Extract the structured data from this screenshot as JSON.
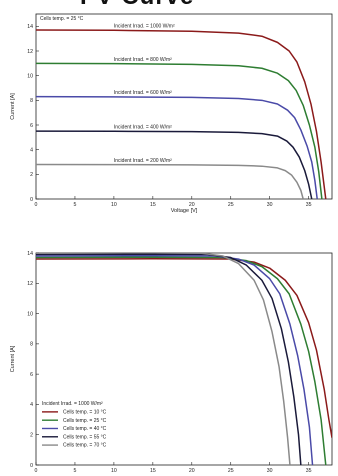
{
  "page_title": "I-V Curve",
  "chart_data": [
    {
      "type": "line",
      "title": "",
      "xlabel": "Voltage [V]",
      "ylabel": "Current [A]",
      "xlim": [
        0,
        38
      ],
      "ylim": [
        0,
        15
      ],
      "x_ticks": [
        0,
        5,
        10,
        15,
        20,
        25,
        30,
        35
      ],
      "y_ticks": [
        0,
        2,
        4,
        6,
        8,
        10,
        12,
        14
      ],
      "grid": false,
      "note": "Cells temp. = 25 °C",
      "series": [
        {
          "name": "Incident Irrad. = 1000 W/m²",
          "color": "#8b1a1a",
          "isc": 13.7,
          "voc": 37.2,
          "x": [
            0,
            10,
            20,
            26,
            29,
            31,
            32.5,
            33.5,
            34.5,
            35.3,
            36,
            36.6,
            37.2
          ],
          "y": [
            13.7,
            13.68,
            13.6,
            13.45,
            13.2,
            12.7,
            12.0,
            11.1,
            9.5,
            7.7,
            5.5,
            3.0,
            0
          ]
        },
        {
          "name": "Incident Irrad. = 800 W/m²",
          "color": "#2e7d32",
          "isc": 11.0,
          "voc": 36.7,
          "x": [
            0,
            10,
            20,
            26,
            29,
            31,
            32.4,
            33.4,
            34.3,
            35.1,
            35.8,
            36.3,
            36.7
          ],
          "y": [
            11.0,
            10.98,
            10.92,
            10.8,
            10.6,
            10.2,
            9.6,
            8.8,
            7.6,
            6.0,
            4.2,
            2.2,
            0
          ]
        },
        {
          "name": "Incident Irrad. = 600 W/m²",
          "color": "#4a4aa8",
          "isc": 8.3,
          "voc": 36.1,
          "x": [
            0,
            10,
            20,
            26,
            29,
            31,
            32.3,
            33.2,
            34.0,
            34.8,
            35.4,
            35.8,
            36.1
          ],
          "y": [
            8.3,
            8.28,
            8.24,
            8.15,
            8.0,
            7.7,
            7.2,
            6.6,
            5.6,
            4.3,
            3.0,
            1.5,
            0
          ]
        },
        {
          "name": "Incident Irrad. = 400 W/m²",
          "color": "#1a1a3a",
          "isc": 5.5,
          "voc": 35.4,
          "x": [
            0,
            10,
            20,
            26,
            29,
            31,
            32.2,
            33.0,
            33.8,
            34.5,
            35.0,
            35.4
          ],
          "y": [
            5.5,
            5.49,
            5.46,
            5.4,
            5.3,
            5.1,
            4.7,
            4.2,
            3.4,
            2.3,
            1.2,
            0
          ]
        },
        {
          "name": "Incident Irrad. = 200 W/m²",
          "color": "#8a8a8a",
          "isc": 2.8,
          "voc": 34.3,
          "x": [
            0,
            10,
            20,
            26,
            29,
            31,
            32.0,
            32.8,
            33.5,
            34.0,
            34.3
          ],
          "y": [
            2.8,
            2.79,
            2.77,
            2.73,
            2.66,
            2.52,
            2.3,
            1.95,
            1.35,
            0.7,
            0
          ]
        }
      ]
    },
    {
      "type": "line",
      "title": "",
      "xlabel": "",
      "ylabel": "Current [A]",
      "xlim": [
        0,
        38
      ],
      "ylim": [
        0,
        14
      ],
      "x_ticks": [
        0,
        5,
        10,
        15,
        20,
        25,
        30,
        35
      ],
      "y_ticks": [
        0,
        2,
        4,
        6,
        8,
        10,
        12,
        14
      ],
      "grid": false,
      "legend_title": "Incident Irrad. = 1000 W/m²",
      "legend_position": "bottom-left",
      "series": [
        {
          "name": "Cells temp. = 10 °C",
          "color": "#8b1a1a",
          "x": [
            0,
            15,
            25,
            28,
            30,
            32,
            33.5,
            35,
            36,
            37,
            37.6,
            38
          ],
          "y": [
            13.6,
            13.62,
            13.6,
            13.4,
            13.0,
            12.2,
            11.2,
            9.4,
            7.6,
            5.0,
            3.0,
            1.8
          ]
        },
        {
          "name": "Cells temp. = 25 °C",
          "color": "#2e7d32",
          "x": [
            0,
            15,
            24,
            27,
            29,
            31,
            32.5,
            34,
            35,
            35.8,
            36.6,
            37.2
          ],
          "y": [
            13.7,
            13.72,
            13.7,
            13.5,
            13.1,
            12.3,
            11.3,
            9.3,
            7.5,
            5.5,
            3.0,
            0
          ]
        },
        {
          "name": "Cells temp. = 40 °C",
          "color": "#4a4aa8",
          "x": [
            0,
            15,
            23,
            26,
            28,
            30,
            31.3,
            32.6,
            33.6,
            34.4,
            35.1,
            35.5
          ],
          "y": [
            13.8,
            13.82,
            13.8,
            13.6,
            13.2,
            12.3,
            11.3,
            9.3,
            7.2,
            5.0,
            2.5,
            0
          ]
        },
        {
          "name": "Cells temp. = 55 °C",
          "color": "#1a1a3a",
          "x": [
            0,
            15,
            22,
            25,
            27,
            29,
            30.3,
            31.5,
            32.4,
            33.1,
            33.7,
            34.0
          ],
          "y": [
            13.9,
            13.92,
            13.9,
            13.7,
            13.2,
            12.2,
            11.0,
            9.0,
            6.8,
            4.5,
            2.0,
            0
          ]
        },
        {
          "name": "Cells temp. = 70 °C",
          "color": "#8a8a8a",
          "x": [
            0,
            15,
            21,
            24,
            26,
            28,
            29.2,
            30.3,
            31.2,
            31.8,
            32.3,
            32.6
          ],
          "y": [
            14.0,
            14.02,
            14.0,
            13.8,
            13.3,
            12.2,
            10.9,
            8.8,
            6.5,
            4.2,
            1.8,
            0
          ]
        }
      ]
    }
  ]
}
